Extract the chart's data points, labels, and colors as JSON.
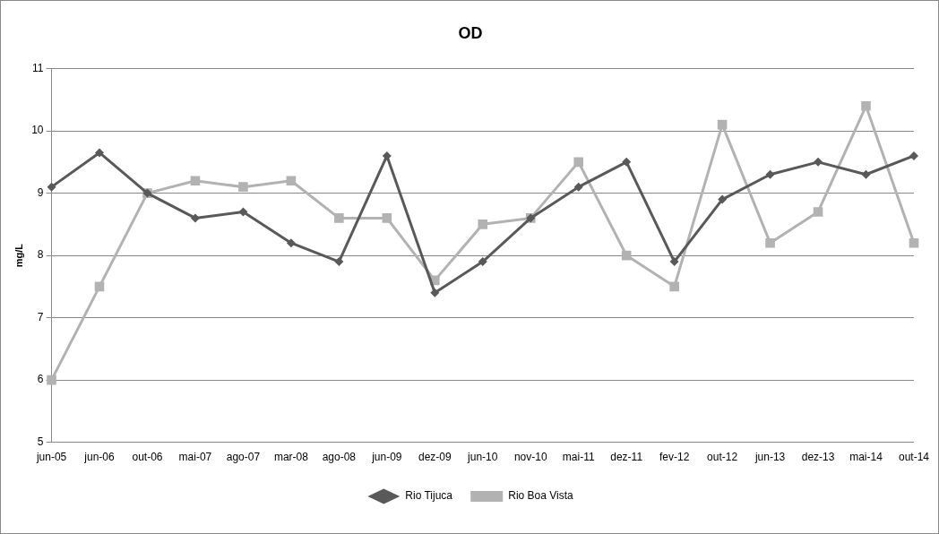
{
  "chart_data": {
    "type": "line",
    "title": "OD",
    "ylabel": "mg/L",
    "categories": [
      "jun-05",
      "jun-06",
      "out-06",
      "mai-07",
      "ago-07",
      "mar-08",
      "ago-08",
      "jun-09",
      "dez-09",
      "jun-10",
      "nov-10",
      "mai-11",
      "dez-11",
      "fev-12",
      "out-12",
      "jun-13",
      "dez-13",
      "mai-14",
      "out-14"
    ],
    "series": [
      {
        "name": "Rio Tijuca",
        "color": "#595959",
        "marker": "diamond",
        "values": [
          9.1,
          9.65,
          9.0,
          8.6,
          8.7,
          8.2,
          7.9,
          9.6,
          7.4,
          7.9,
          8.6,
          9.1,
          9.5,
          7.9,
          8.9,
          9.3,
          9.5,
          9.3,
          9.6
        ]
      },
      {
        "name": "Rio Boa Vista",
        "color": "#b2b2b2",
        "marker": "square",
        "values": [
          6.0,
          7.5,
          9.0,
          9.2,
          9.1,
          9.2,
          8.6,
          8.6,
          7.6,
          8.5,
          8.6,
          9.5,
          8.0,
          7.5,
          10.1,
          8.2,
          8.7,
          10.4,
          8.2
        ]
      }
    ],
    "ylim": [
      5,
      11
    ],
    "yticks": [
      5,
      6,
      7,
      8,
      9,
      10,
      11
    ],
    "grid": "y",
    "legend": "bottom",
    "line_style": "solid"
  }
}
